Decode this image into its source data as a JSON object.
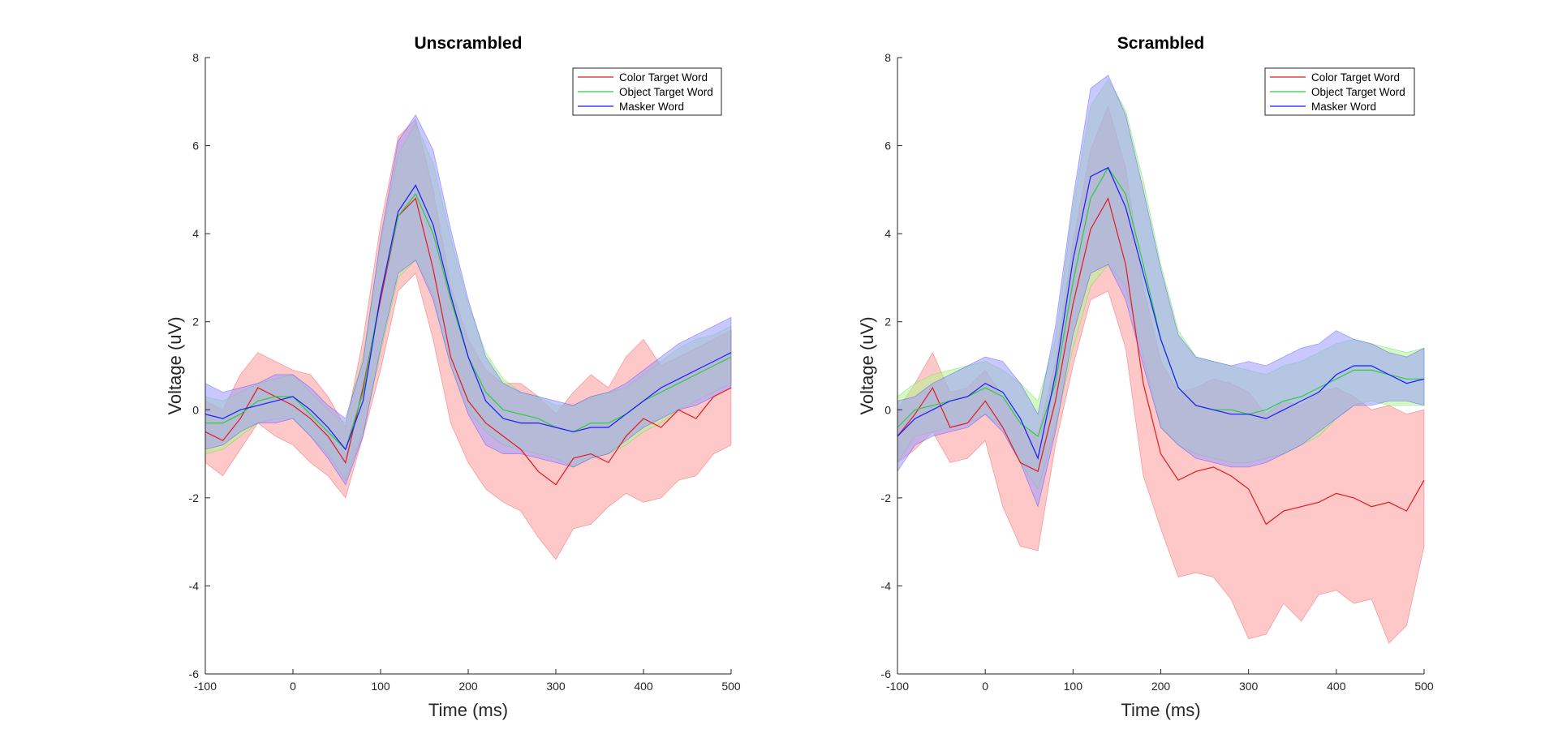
{
  "chart_data": [
    {
      "type": "line",
      "title": "Unscrambled",
      "xlabel": "Time (ms)",
      "ylabel": "Voltage (uV)",
      "xlim": [
        -100,
        500
      ],
      "ylim": [
        -6,
        8
      ],
      "xticks": [
        -100,
        0,
        100,
        200,
        300,
        400,
        500
      ],
      "yticks": [
        -6,
        -4,
        -2,
        0,
        2,
        4,
        6,
        8
      ],
      "legend_position": "top-right",
      "x": [
        -100,
        -80,
        -60,
        -40,
        -20,
        0,
        20,
        40,
        60,
        80,
        100,
        120,
        140,
        160,
        180,
        200,
        220,
        240,
        260,
        280,
        300,
        320,
        340,
        360,
        380,
        400,
        420,
        440,
        460,
        480,
        500
      ],
      "series": [
        {
          "name": "Color Target Word",
          "color": "#e41a1c",
          "band_color": "#ff9a9a",
          "values": [
            -0.5,
            -0.7,
            -0.2,
            0.5,
            0.3,
            0.1,
            -0.2,
            -0.6,
            -1.2,
            0.5,
            2.5,
            4.4,
            4.8,
            3.2,
            1.2,
            0.2,
            -0.3,
            -0.6,
            -0.9,
            -1.4,
            -1.7,
            -1.1,
            -1.0,
            -1.2,
            -0.6,
            -0.2,
            -0.4,
            0.0,
            -0.2,
            0.3,
            0.5
          ],
          "upper": [
            0.2,
            0.0,
            0.8,
            1.3,
            1.1,
            0.9,
            0.8,
            0.3,
            -0.4,
            1.6,
            4.2,
            6.2,
            6.6,
            5.0,
            2.8,
            1.6,
            0.9,
            0.6,
            0.6,
            0.3,
            -0.1,
            0.4,
            0.8,
            0.5,
            1.2,
            1.6,
            1.0,
            1.2,
            1.4,
            1.6,
            1.8
          ],
          "lower": [
            -1.2,
            -1.5,
            -0.9,
            -0.3,
            -0.6,
            -0.8,
            -1.2,
            -1.5,
            -2.0,
            -0.6,
            0.9,
            2.7,
            3.1,
            1.6,
            -0.3,
            -1.2,
            -1.8,
            -2.1,
            -2.3,
            -2.9,
            -3.4,
            -2.7,
            -2.6,
            -2.2,
            -1.9,
            -2.1,
            -2.0,
            -1.6,
            -1.5,
            -1.0,
            -0.8
          ]
        },
        {
          "name": "Object Target Word",
          "color": "#2ecc40",
          "band_color": "#b3f58c",
          "values": [
            -0.3,
            -0.3,
            -0.1,
            0.2,
            0.3,
            0.3,
            -0.1,
            -0.5,
            -0.9,
            0.4,
            2.6,
            4.4,
            4.9,
            4.0,
            2.5,
            1.2,
            0.4,
            0.0,
            -0.1,
            -0.2,
            -0.4,
            -0.5,
            -0.3,
            -0.3,
            -0.1,
            0.2,
            0.4,
            0.6,
            0.8,
            1.0,
            1.2
          ],
          "upper": [
            0.3,
            0.2,
            0.4,
            0.6,
            0.7,
            0.8,
            0.4,
            0.0,
            -0.3,
            1.2,
            3.8,
            5.8,
            6.5,
            5.6,
            3.9,
            2.4,
            1.3,
            0.7,
            0.4,
            0.3,
            0.1,
            0.1,
            0.3,
            0.4,
            0.5,
            0.8,
            1.1,
            1.4,
            1.6,
            1.7,
            1.9
          ],
          "lower": [
            -1.0,
            -0.9,
            -0.6,
            -0.3,
            -0.2,
            -0.2,
            -0.6,
            -1.0,
            -1.6,
            -0.5,
            1.3,
            3.0,
            3.4,
            2.6,
            1.0,
            0.0,
            -0.5,
            -0.8,
            -0.9,
            -1.0,
            -1.1,
            -1.3,
            -1.1,
            -1.0,
            -0.8,
            -0.5,
            -0.3,
            0.0,
            0.2,
            0.4,
            0.6
          ]
        },
        {
          "name": "Masker Word",
          "color": "#1a1aff",
          "band_color": "#9a9aff",
          "values": [
            -0.1,
            -0.2,
            0.0,
            0.1,
            0.2,
            0.3,
            0.0,
            -0.4,
            -0.9,
            0.2,
            2.6,
            4.5,
            5.1,
            4.2,
            2.6,
            1.2,
            0.2,
            -0.2,
            -0.3,
            -0.3,
            -0.4,
            -0.5,
            -0.4,
            -0.4,
            -0.1,
            0.2,
            0.5,
            0.7,
            0.9,
            1.1,
            1.3
          ],
          "upper": [
            0.6,
            0.4,
            0.5,
            0.6,
            0.8,
            0.8,
            0.5,
            0.1,
            -0.2,
            1.1,
            3.9,
            6.1,
            6.7,
            5.9,
            4.1,
            2.5,
            1.2,
            0.6,
            0.4,
            0.3,
            0.2,
            0.1,
            0.3,
            0.4,
            0.6,
            0.9,
            1.2,
            1.5,
            1.7,
            1.9,
            2.1
          ],
          "lower": [
            -0.9,
            -0.8,
            -0.5,
            -0.3,
            -0.3,
            -0.2,
            -0.6,
            -1.1,
            -1.7,
            -0.6,
            1.4,
            3.1,
            3.4,
            2.5,
            1.0,
            -0.1,
            -0.8,
            -1.0,
            -1.0,
            -1.1,
            -1.2,
            -1.3,
            -1.1,
            -1.0,
            -0.7,
            -0.4,
            -0.2,
            0.0,
            0.1,
            0.3,
            0.5
          ]
        }
      ]
    },
    {
      "type": "line",
      "title": "Scrambled",
      "xlabel": "Time (ms)",
      "ylabel": "Voltage (uV)",
      "xlim": [
        -100,
        500
      ],
      "ylim": [
        -6,
        8
      ],
      "xticks": [
        -100,
        0,
        100,
        200,
        300,
        400,
        500
      ],
      "yticks": [
        -6,
        -4,
        -2,
        0,
        2,
        4,
        6,
        8
      ],
      "legend_position": "top-right",
      "x": [
        -100,
        -80,
        -60,
        -40,
        -20,
        0,
        20,
        40,
        60,
        80,
        100,
        120,
        140,
        160,
        180,
        200,
        220,
        240,
        260,
        280,
        300,
        320,
        340,
        360,
        380,
        400,
        420,
        440,
        460,
        480,
        500
      ],
      "series": [
        {
          "name": "Color Target Word",
          "color": "#e41a1c",
          "band_color": "#ff9a9a",
          "values": [
            -0.6,
            -0.1,
            0.5,
            -0.4,
            -0.3,
            0.2,
            -0.4,
            -1.2,
            -1.4,
            0.2,
            2.4,
            4.1,
            4.8,
            3.3,
            0.6,
            -1.0,
            -1.6,
            -1.4,
            -1.3,
            -1.5,
            -1.8,
            -2.6,
            -2.3,
            -2.2,
            -2.1,
            -1.9,
            -2.0,
            -2.2,
            -2.1,
            -2.3,
            -1.6
          ],
          "upper": [
            0.0,
            0.6,
            1.3,
            0.4,
            0.5,
            0.9,
            0.3,
            -0.3,
            -0.6,
            1.1,
            3.8,
            5.9,
            6.9,
            5.5,
            2.8,
            1.1,
            0.4,
            0.5,
            0.7,
            0.6,
            0.4,
            -0.1,
            0.2,
            0.1,
            0.4,
            0.5,
            0.3,
            0.0,
            0.1,
            -0.1,
            0.0
          ],
          "lower": [
            -1.2,
            -0.9,
            -0.5,
            -1.2,
            -1.1,
            -0.7,
            -2.2,
            -3.1,
            -3.2,
            -0.8,
            1.0,
            2.5,
            2.7,
            1.4,
            -1.5,
            -2.7,
            -3.8,
            -3.7,
            -3.8,
            -4.3,
            -5.2,
            -5.1,
            -4.4,
            -4.8,
            -4.2,
            -4.1,
            -4.4,
            -4.3,
            -5.3,
            -4.9,
            -3.1
          ]
        },
        {
          "name": "Object Target Word",
          "color": "#2ecc40",
          "band_color": "#b3f58c",
          "values": [
            -0.4,
            0.0,
            0.1,
            0.2,
            0.3,
            0.5,
            0.3,
            -0.3,
            -0.6,
            0.6,
            2.9,
            4.8,
            5.5,
            4.9,
            3.3,
            1.6,
            0.5,
            0.1,
            0.0,
            0.0,
            -0.1,
            0.0,
            0.2,
            0.3,
            0.5,
            0.7,
            0.9,
            0.9,
            0.8,
            0.7,
            0.7
          ],
          "upper": [
            0.3,
            0.6,
            0.8,
            0.9,
            1.0,
            1.1,
            0.9,
            0.6,
            0.2,
            1.6,
            4.6,
            6.9,
            7.5,
            6.8,
            5.2,
            3.3,
            1.8,
            1.2,
            1.1,
            1.0,
            0.9,
            0.8,
            1.0,
            1.1,
            1.3,
            1.5,
            1.6,
            1.5,
            1.4,
            1.3,
            1.4
          ],
          "lower": [
            -1.2,
            -0.6,
            -0.5,
            -0.4,
            -0.3,
            -0.1,
            -0.4,
            -1.2,
            -1.8,
            -0.4,
            1.4,
            2.8,
            3.3,
            2.8,
            1.2,
            -0.4,
            -0.8,
            -1.0,
            -1.1,
            -1.2,
            -1.2,
            -1.1,
            -1.0,
            -0.8,
            -0.6,
            -0.2,
            0.1,
            0.2,
            0.1,
            0.1,
            0.1
          ]
        },
        {
          "name": "Masker Word",
          "color": "#1a1aff",
          "band_color": "#9a9aff",
          "values": [
            -0.6,
            -0.2,
            0.0,
            0.2,
            0.3,
            0.6,
            0.4,
            -0.2,
            -1.1,
            0.8,
            3.4,
            5.3,
            5.5,
            4.6,
            3.1,
            1.6,
            0.5,
            0.1,
            0.0,
            -0.1,
            -0.1,
            -0.2,
            0.0,
            0.2,
            0.4,
            0.8,
            1.0,
            1.0,
            0.8,
            0.6,
            0.7
          ],
          "upper": [
            0.2,
            0.3,
            0.6,
            0.8,
            1.0,
            1.2,
            1.1,
            0.6,
            -0.1,
            1.9,
            4.8,
            7.3,
            7.6,
            6.7,
            5.0,
            3.2,
            1.7,
            1.2,
            1.1,
            1.0,
            1.1,
            1.0,
            1.2,
            1.4,
            1.5,
            1.8,
            1.6,
            1.5,
            1.3,
            1.2,
            1.4
          ],
          "lower": [
            -1.4,
            -0.8,
            -0.6,
            -0.5,
            -0.4,
            -0.1,
            -0.5,
            -1.2,
            -2.2,
            -0.5,
            1.7,
            3.1,
            3.3,
            2.5,
            1.0,
            -0.4,
            -0.8,
            -1.1,
            -1.2,
            -1.3,
            -1.3,
            -1.2,
            -1.0,
            -0.8,
            -0.5,
            -0.2,
            0.1,
            0.1,
            0.2,
            0.2,
            0.1
          ]
        }
      ]
    }
  ]
}
